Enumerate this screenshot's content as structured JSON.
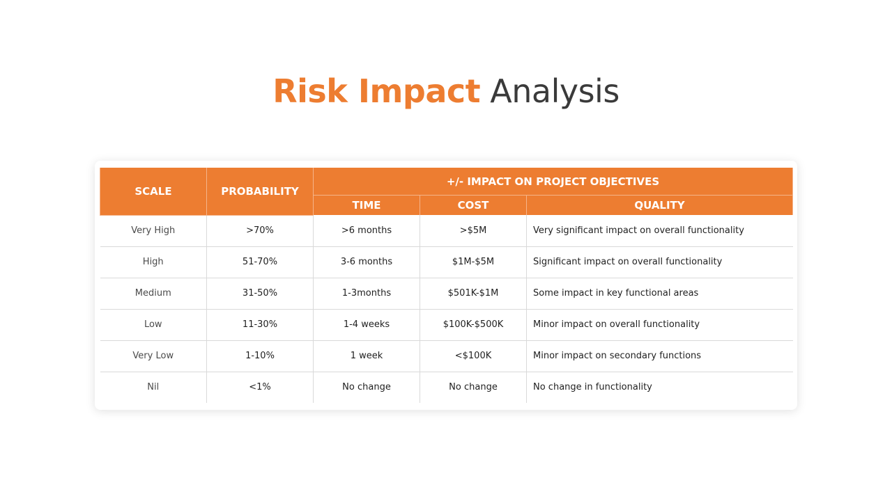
{
  "title": {
    "accent": "Risk Impact",
    "rest": "Analysis"
  },
  "colors": {
    "accent": "#ED7D31",
    "title_gray": "#3a3a3a"
  },
  "table": {
    "headers": {
      "scale": "SCALE",
      "probability": "PROBABILITY",
      "impact_group": "+/- IMPACT ON PROJECT OBJECTIVES",
      "time": "TIME",
      "cost": "COST",
      "quality": "QUALITY"
    },
    "rows": [
      {
        "scale": "Very High",
        "probability": ">70%",
        "time": ">6 months",
        "cost": ">$5M",
        "quality": "Very significant impact on overall functionality"
      },
      {
        "scale": "High",
        "probability": "51-70%",
        "time": "3-6 months",
        "cost": "$1M-$5M",
        "quality": "Significant impact on overall functionality"
      },
      {
        "scale": "Medium",
        "probability": "31-50%",
        "time": "1-3months",
        "cost": "$501K-$1M",
        "quality": "Some impact in key functional areas"
      },
      {
        "scale": "Low",
        "probability": "11-30%",
        "time": "1-4 weeks",
        "cost": "$100K-$500K",
        "quality": "Minor impact on overall functionality"
      },
      {
        "scale": "Very Low",
        "probability": "1-10%",
        "time": "1 week",
        "cost": "<$100K",
        "quality": "Minor impact on secondary functions"
      },
      {
        "scale": "Nil",
        "probability": "<1%",
        "time": "No change",
        "cost": "No change",
        "quality": "No change in functionality"
      }
    ]
  }
}
